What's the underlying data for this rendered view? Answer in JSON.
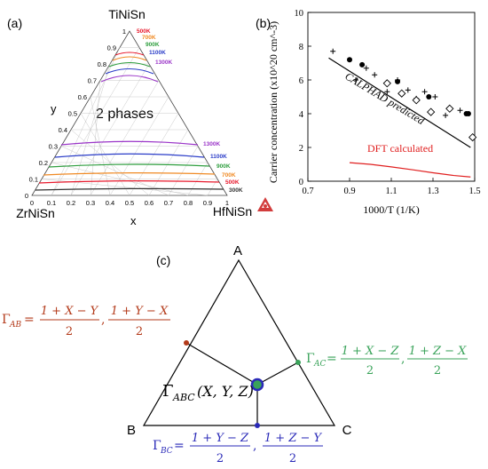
{
  "panel_a": {
    "label": "(a)",
    "apex_top": "TiNiSn",
    "apex_left": "ZrNiSn",
    "apex_right": "HfNiSn",
    "axis_y": "y",
    "axis_x": "x",
    "region_label": "2 phases",
    "ticks_bottom": [
      "0",
      "0.1",
      "0.2",
      "0.3",
      "0.4",
      "0.5",
      "0.6",
      "0.7",
      "0.8",
      "0.9",
      "1"
    ],
    "ticks_left": [
      "1",
      "0.9",
      "0.8",
      "0.7",
      "0.6",
      "0.5",
      "0.4",
      "0.3",
      "0.2",
      "0.1",
      "0"
    ],
    "temps_top": [
      "500K",
      "700K",
      "900K",
      "1100K",
      "1300K"
    ],
    "temps_bottom": [
      "1300K",
      "1100K",
      "900K",
      "700K",
      "500K",
      "300K"
    ],
    "colors": {
      "500K": "#e8192c",
      "700K": "#f08a24",
      "900K": "#2e9e3e",
      "1100K": "#2a3cc8",
      "1300K": "#9a34c8",
      "300K": "#333333"
    }
  },
  "panel_b": {
    "label": "(b)",
    "chart_data": {
      "type": "scatter",
      "xlabel": "1000/T (1/K)",
      "ylabel": "Carrier concentration (x10^20 cm^-3)",
      "xlim": [
        0.7,
        1.5
      ],
      "ylim": [
        0,
        10
      ],
      "xticks": [
        "0.7",
        "0.9",
        "1.1",
        "1.3",
        "1.5"
      ],
      "yticks": [
        "0",
        "2",
        "4",
        "6",
        "8",
        "10"
      ],
      "series": [
        {
          "marker": "filled-circle",
          "x": [
            0.9,
            0.96,
            1.13,
            1.28,
            1.46,
            1.47
          ],
          "y": [
            7.2,
            6.9,
            5.9,
            5.0,
            4.0,
            4.0
          ]
        },
        {
          "marker": "plus",
          "x": [
            0.82,
            0.93,
            0.98,
            1.02,
            1.08,
            1.13,
            1.18,
            1.22,
            1.26,
            1.31,
            1.36,
            1.43
          ],
          "y": [
            7.7,
            6.0,
            6.7,
            6.3,
            5.3,
            6.0,
            5.4,
            4.9,
            5.3,
            5.0,
            3.9,
            4.2
          ]
        },
        {
          "marker": "open-diamond",
          "x": [
            1.08,
            1.15,
            1.22,
            1.29,
            1.38,
            1.49
          ],
          "y": [
            5.8,
            5.2,
            4.8,
            4.1,
            4.3,
            2.6
          ]
        }
      ],
      "lines": [
        {
          "name": "CALPHAD predicted",
          "color": "#000000",
          "x": [
            0.8,
            1.48
          ],
          "y": [
            7.3,
            2.0
          ]
        },
        {
          "name": "DFT calculated",
          "color": "#e02020",
          "x": [
            0.9,
            1.0,
            1.1,
            1.2,
            1.3,
            1.4,
            1.48
          ],
          "y": [
            1.1,
            1.0,
            0.85,
            0.68,
            0.5,
            0.34,
            0.25
          ]
        }
      ]
    }
  },
  "panel_c": {
    "label": "(c)",
    "vertex_a": "A",
    "vertex_b": "B",
    "vertex_c": "C",
    "center_label": "Γ",
    "center_sub": "ABC",
    "center_args": "(X, Y, Z)",
    "gamma_ab": {
      "symbol": "Γ",
      "sub": "AB",
      "eq": "=",
      "num1": "1 + X − Y",
      "num2": "1 + Y − X",
      "den": "2",
      "sep": ",",
      "color": "#b33a1a"
    },
    "gamma_ac": {
      "symbol": "Γ",
      "sub": "AC",
      "eq": "=",
      "num1": "1 + X − Z",
      "num2": "1 + Z − X",
      "den": "2",
      "sep": ",",
      "color": "#3aa35a"
    },
    "gamma_bc": {
      "symbol": "Γ",
      "sub": "BC",
      "eq": "=",
      "num1": "1 + Y − Z",
      "num2": "1 + Z − Y",
      "den": "2",
      "sep": ",",
      "color": "#2a2ab8"
    }
  }
}
